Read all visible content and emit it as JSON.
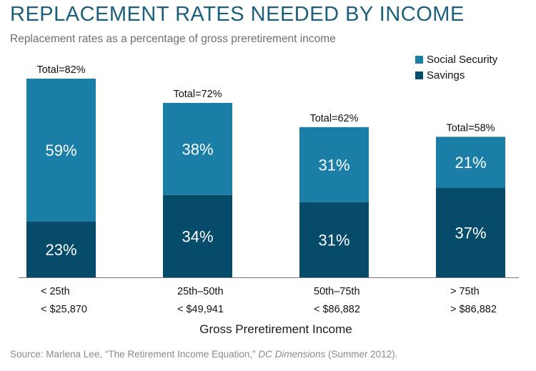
{
  "title": "REPLACEMENT RATES NEEDED BY INCOME",
  "subtitle": "Replacement rates as a percentage of gross preretirement income",
  "source": {
    "prefix": "Source: Marlena Lee, “The Retirement Income Equation,” ",
    "publication": "DC Dimensions",
    "suffix": " (Summer 2012)."
  },
  "chart_data": {
    "type": "bar",
    "stacked": true,
    "categories": [
      "< 25th",
      "25th–50th",
      "50th–75th",
      "> 75th"
    ],
    "category_sublabels": [
      "< $25,870",
      "< $49,941",
      "< $86,882",
      "> $86,882"
    ],
    "xlabel": "Gross Preretirement Income",
    "ylabel": "",
    "ylim": [
      0,
      82
    ],
    "grid": false,
    "legend_position": "top-right",
    "series": [
      {
        "name": "Savings",
        "color": "#064b6a",
        "values": [
          23,
          34,
          31,
          37
        ],
        "labels": [
          "23%",
          "34%",
          "31%",
          "37%"
        ]
      },
      {
        "name": "Social Security",
        "color": "#1a7ea6",
        "values": [
          59,
          38,
          31,
          21
        ],
        "labels": [
          "59%",
          "38%",
          "31%",
          "21%"
        ]
      }
    ],
    "totals": [
      82,
      72,
      62,
      58
    ],
    "total_labels": [
      "Total=82%",
      "Total=72%",
      "Total=62%",
      "Total=58%"
    ],
    "legend": [
      {
        "name": "Social Security",
        "color": "#1a7ea6"
      },
      {
        "name": "Savings",
        "color": "#064b6a"
      }
    ]
  }
}
